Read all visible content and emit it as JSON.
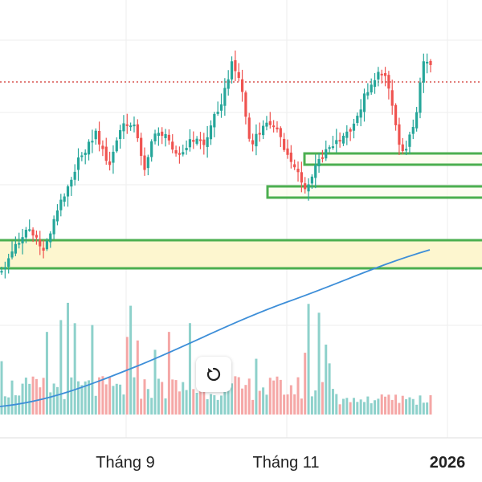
{
  "chart_data": {
    "type": "candlestick",
    "x_tick_labels": [
      {
        "label": "Tháng 9",
        "bold": false
      },
      {
        "label": "Tháng 11",
        "bold": false
      },
      {
        "label": "2026",
        "bold": true
      }
    ],
    "reference_line": {
      "style": "dotted",
      "color": "#d9534f"
    },
    "zones": [
      {
        "name": "zone-upper-short",
        "style": "outline"
      },
      {
        "name": "zone-lower-short",
        "style": "outline"
      },
      {
        "name": "zone-wide",
        "style": "filled",
        "fill": "#fdf6cf"
      }
    ],
    "moving_average": {
      "color": "#3d8ed8"
    },
    "colors": {
      "up": "#26a69a",
      "down": "#ef5350",
      "vol_up": "#8ed1cb",
      "vol_down": "#f5a7a6",
      "zone_border": "#4caf50",
      "grid": "#eeeeee"
    },
    "grid": true
  },
  "controls": {
    "reset_icon": "reset-rotate-icon"
  }
}
